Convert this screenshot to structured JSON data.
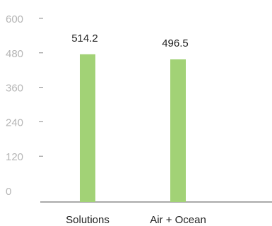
{
  "chart_data": {
    "type": "bar",
    "categories": [
      "Solutions",
      "Air + Ocean"
    ],
    "values": [
      514.2,
      496.5
    ],
    "value_labels": [
      "514.2",
      "496.5"
    ],
    "yticks": [
      0,
      120,
      240,
      360,
      480,
      600
    ],
    "ytick_labels": [
      "0",
      "120",
      "240",
      "360",
      "480",
      "600"
    ],
    "ylim": [
      0,
      600
    ],
    "title": "",
    "xlabel": "",
    "ylabel": "",
    "grid": false,
    "legend": "none",
    "colors": {
      "bar": "#a2d276",
      "bar_edge": "#8fc35f",
      "tick_label": "#b5b5b5",
      "text": "#222222"
    }
  }
}
